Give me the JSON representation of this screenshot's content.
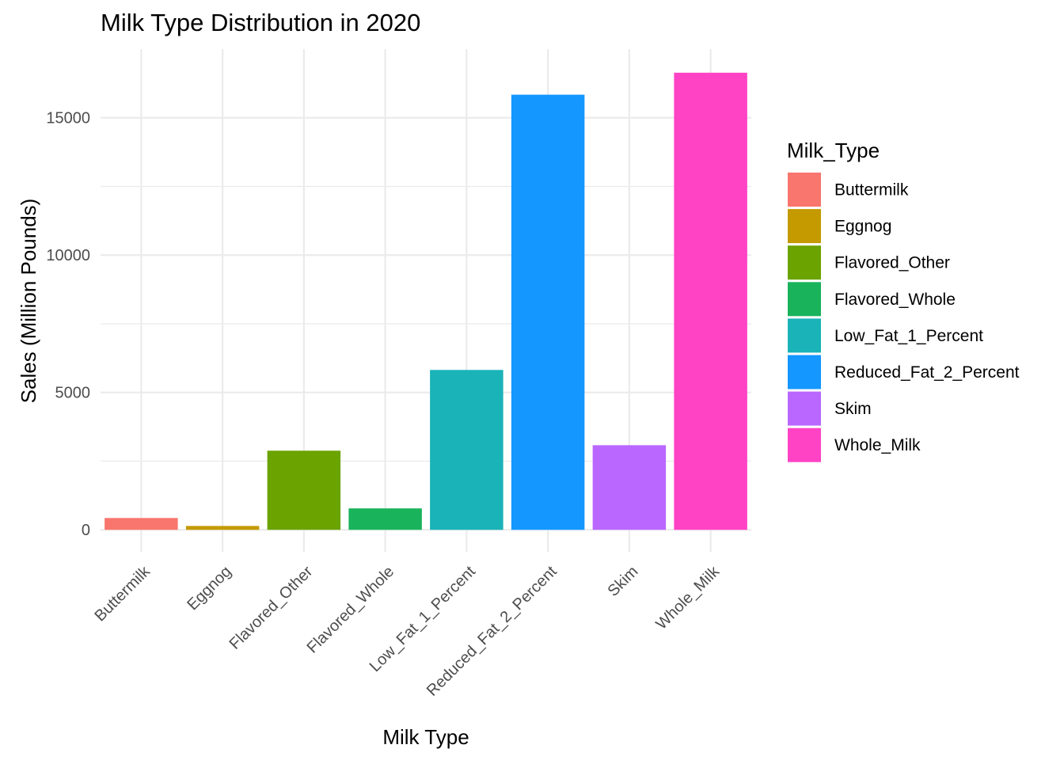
{
  "chart_data": {
    "type": "bar",
    "title": "Milk Type Distribution in 2020",
    "xlabel": "Milk Type",
    "ylabel": "Sales (Million Pounds)",
    "categories": [
      "Buttermilk",
      "Eggnog",
      "Flavored_Other",
      "Flavored_Whole",
      "Low_Fat_1_Percent",
      "Reduced_Fat_2_Percent",
      "Skim",
      "Whole_Milk"
    ],
    "values": [
      430,
      140,
      2880,
      780,
      5820,
      15840,
      3080,
      16640
    ],
    "colors": [
      "#F8766D",
      "#C49A00",
      "#6BA300",
      "#19B35C",
      "#19B3B8",
      "#1497FF",
      "#B967FF",
      "#FF43C4"
    ],
    "ylim": [
      -800,
      17500
    ],
    "yticks": [
      0,
      5000,
      10000,
      15000
    ],
    "ytick_labels": [
      "0",
      "5000",
      "10000",
      "15000"
    ],
    "grid": true,
    "legend": {
      "title": "Milk_Type",
      "position": "right",
      "entries": [
        "Buttermilk",
        "Eggnog",
        "Flavored_Other",
        "Flavored_Whole",
        "Low_Fat_1_Percent",
        "Reduced_Fat_2_Percent",
        "Skim",
        "Whole_Milk"
      ]
    }
  }
}
